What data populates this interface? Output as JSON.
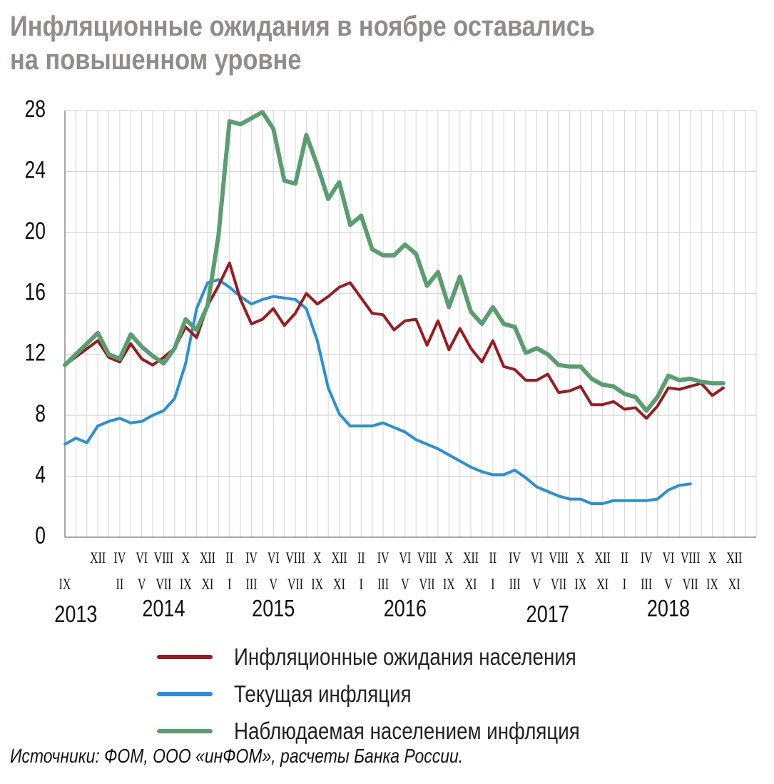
{
  "title": {
    "line1": "Инфляционные ожидания в ноябре оставались",
    "line2": "на повышенном уровне"
  },
  "source": "Источники: ФОМ, ООО «инФОМ», расчеты Банка России.",
  "legend": [
    {
      "label": "Инфляционные ожидания населения",
      "color": "#9b1b1e"
    },
    {
      "label": "Текущая инфляция",
      "color": "#2b8fd6"
    },
    {
      "label": "Наблюдаемая населением инфляция",
      "color": "#5a9e6f"
    }
  ],
  "chart_data": {
    "type": "line",
    "ylim": [
      0,
      28
    ],
    "yticks": [
      0,
      4,
      8,
      12,
      16,
      20,
      24,
      28
    ],
    "grid": true,
    "x_start": "2013-09",
    "x_end": "2018-12",
    "month_labels_top": [
      "XII",
      "IV",
      "VI",
      "VIII",
      "X",
      "XII",
      "II",
      "IV",
      "VI",
      "VIII",
      "X",
      "XII",
      "II",
      "IV",
      "VI",
      "VIII",
      "X",
      "XII",
      "II",
      "IV",
      "VI",
      "VIII",
      "X",
      "XII",
      "II",
      "IV",
      "VI",
      "VIII",
      "X",
      "XII"
    ],
    "month_labels_bottom": [
      "IX",
      "II",
      "V",
      "VII",
      "IX",
      "XI",
      "I",
      "III",
      "V",
      "VII",
      "IX",
      "XI",
      "I",
      "III",
      "V",
      "VII",
      "IX",
      "XI",
      "I",
      "III",
      "V",
      "VII",
      "IX",
      "XI",
      "I",
      "III",
      "V",
      "VII",
      "IX",
      "XI"
    ],
    "years": [
      "2013",
      "2014",
      "2015",
      "2016",
      "2017",
      "2018"
    ],
    "series": [
      {
        "name": "Инфляционные ожидания населения",
        "color": "#9b1b1e",
        "points": [
          [
            "2013-09",
            11.3
          ],
          [
            "2013-12",
            12.9
          ],
          [
            "2014-01",
            11.8
          ],
          [
            "2014-02",
            11.5
          ],
          [
            "2014-03",
            12.7
          ],
          [
            "2014-04",
            11.7
          ],
          [
            "2014-05",
            11.3
          ],
          [
            "2014-06",
            11.8
          ],
          [
            "2014-07",
            12.4
          ],
          [
            "2014-08",
            13.8
          ],
          [
            "2014-09",
            13.1
          ],
          [
            "2014-10",
            15.2
          ],
          [
            "2014-11",
            16.5
          ],
          [
            "2014-12",
            18.0
          ],
          [
            "2015-01",
            15.6
          ],
          [
            "2015-02",
            14.0
          ],
          [
            "2015-03",
            14.3
          ],
          [
            "2015-04",
            15.0
          ],
          [
            "2015-05",
            13.9
          ],
          [
            "2015-06",
            14.7
          ],
          [
            "2015-07",
            16.0
          ],
          [
            "2015-08",
            15.3
          ],
          [
            "2015-09",
            15.8
          ],
          [
            "2015-10",
            16.4
          ],
          [
            "2015-11",
            16.7
          ],
          [
            "2015-12",
            15.7
          ],
          [
            "2016-01",
            14.7
          ],
          [
            "2016-02",
            14.6
          ],
          [
            "2016-03",
            13.6
          ],
          [
            "2016-04",
            14.2
          ],
          [
            "2016-05",
            14.3
          ],
          [
            "2016-06",
            12.6
          ],
          [
            "2016-07",
            14.2
          ],
          [
            "2016-08",
            12.3
          ],
          [
            "2016-09",
            13.7
          ],
          [
            "2016-10",
            12.4
          ],
          [
            "2016-11",
            11.5
          ],
          [
            "2016-12",
            12.9
          ],
          [
            "2017-01",
            11.2
          ],
          [
            "2017-02",
            11.0
          ],
          [
            "2017-03",
            10.3
          ],
          [
            "2017-04",
            10.3
          ],
          [
            "2017-05",
            10.7
          ],
          [
            "2017-06",
            9.5
          ],
          [
            "2017-07",
            9.6
          ],
          [
            "2017-08",
            9.9
          ],
          [
            "2017-09",
            8.7
          ],
          [
            "2017-10",
            8.7
          ],
          [
            "2017-11",
            8.9
          ],
          [
            "2017-12",
            8.4
          ],
          [
            "2018-01",
            8.5
          ],
          [
            "2018-02",
            7.8
          ],
          [
            "2018-03",
            8.6
          ],
          [
            "2018-04",
            9.8
          ],
          [
            "2018-05",
            9.7
          ],
          [
            "2018-06",
            9.9
          ],
          [
            "2018-07",
            10.1
          ],
          [
            "2018-08",
            9.3
          ],
          [
            "2018-09",
            9.8
          ]
        ]
      },
      {
        "name": "Текущая инфляция",
        "color": "#2b8fd6",
        "points": [
          [
            "2013-09",
            6.1
          ],
          [
            "2013-10",
            6.5
          ],
          [
            "2013-11",
            6.2
          ],
          [
            "2013-12",
            7.3
          ],
          [
            "2014-01",
            7.6
          ],
          [
            "2014-02",
            7.8
          ],
          [
            "2014-03",
            7.5
          ],
          [
            "2014-04",
            7.6
          ],
          [
            "2014-05",
            8.0
          ],
          [
            "2014-06",
            8.3
          ],
          [
            "2014-07",
            9.1
          ],
          [
            "2014-08",
            11.4
          ],
          [
            "2014-09",
            15.0
          ],
          [
            "2014-10",
            16.7
          ],
          [
            "2014-11",
            16.9
          ],
          [
            "2014-12",
            16.4
          ],
          [
            "2015-01",
            15.8
          ],
          [
            "2015-02",
            15.3
          ],
          [
            "2015-03",
            15.6
          ],
          [
            "2015-04",
            15.8
          ],
          [
            "2015-05",
            15.7
          ],
          [
            "2015-06",
            15.6
          ],
          [
            "2015-07",
            15.0
          ],
          [
            "2015-08",
            12.9
          ],
          [
            "2015-09",
            9.8
          ],
          [
            "2015-10",
            8.1
          ],
          [
            "2015-11",
            7.3
          ],
          [
            "2015-12",
            7.3
          ],
          [
            "2016-01",
            7.3
          ],
          [
            "2016-02",
            7.5
          ],
          [
            "2016-03",
            7.2
          ],
          [
            "2016-04",
            6.9
          ],
          [
            "2016-05",
            6.4
          ],
          [
            "2016-06",
            6.1
          ],
          [
            "2016-07",
            5.8
          ],
          [
            "2016-08",
            5.4
          ],
          [
            "2016-09",
            5.0
          ],
          [
            "2016-10",
            4.6
          ],
          [
            "2016-11",
            4.3
          ],
          [
            "2016-12",
            4.1
          ],
          [
            "2017-01",
            4.1
          ],
          [
            "2017-02",
            4.4
          ],
          [
            "2017-03",
            3.9
          ],
          [
            "2017-04",
            3.3
          ],
          [
            "2017-05",
            3.0
          ],
          [
            "2017-06",
            2.7
          ],
          [
            "2017-07",
            2.5
          ],
          [
            "2017-08",
            2.5
          ],
          [
            "2017-09",
            2.2
          ],
          [
            "2017-10",
            2.2
          ],
          [
            "2017-11",
            2.4
          ],
          [
            "2017-12",
            2.4
          ],
          [
            "2018-01",
            2.4
          ],
          [
            "2018-02",
            2.4
          ],
          [
            "2018-03",
            2.5
          ],
          [
            "2018-04",
            3.1
          ],
          [
            "2018-05",
            3.4
          ],
          [
            "2018-06",
            3.5
          ]
        ]
      },
      {
        "name": "Наблюдаемая населением инфляция",
        "color": "#5a9e6f",
        "points": [
          [
            "2013-09",
            11.3
          ],
          [
            "2013-12",
            13.4
          ],
          [
            "2014-01",
            12.0
          ],
          [
            "2014-02",
            11.7
          ],
          [
            "2014-03",
            13.3
          ],
          [
            "2014-04",
            12.5
          ],
          [
            "2014-05",
            11.9
          ],
          [
            "2014-06",
            11.4
          ],
          [
            "2014-07",
            12.4
          ],
          [
            "2014-08",
            14.3
          ],
          [
            "2014-09",
            13.6
          ],
          [
            "2014-10",
            15.2
          ],
          [
            "2014-11",
            19.8
          ],
          [
            "2014-12",
            27.3
          ],
          [
            "2015-01",
            27.1
          ],
          [
            "2015-02",
            27.5
          ],
          [
            "2015-03",
            27.9
          ],
          [
            "2015-04",
            26.8
          ],
          [
            "2015-05",
            23.4
          ],
          [
            "2015-06",
            23.2
          ],
          [
            "2015-07",
            26.4
          ],
          [
            "2015-08",
            24.4
          ],
          [
            "2015-09",
            22.2
          ],
          [
            "2015-10",
            23.3
          ],
          [
            "2015-11",
            20.5
          ],
          [
            "2015-12",
            21.1
          ],
          [
            "2016-01",
            18.9
          ],
          [
            "2016-02",
            18.5
          ],
          [
            "2016-03",
            18.5
          ],
          [
            "2016-04",
            19.2
          ],
          [
            "2016-05",
            18.6
          ],
          [
            "2016-06",
            16.5
          ],
          [
            "2016-07",
            17.4
          ],
          [
            "2016-08",
            15.1
          ],
          [
            "2016-09",
            17.1
          ],
          [
            "2016-10",
            14.8
          ],
          [
            "2016-11",
            14.0
          ],
          [
            "2016-12",
            15.1
          ],
          [
            "2017-01",
            14.0
          ],
          [
            "2017-02",
            13.8
          ],
          [
            "2017-03",
            12.1
          ],
          [
            "2017-04",
            12.4
          ],
          [
            "2017-05",
            12.0
          ],
          [
            "2017-06",
            11.3
          ],
          [
            "2017-07",
            11.2
          ],
          [
            "2017-08",
            11.2
          ],
          [
            "2017-09",
            10.4
          ],
          [
            "2017-10",
            10.0
          ],
          [
            "2017-11",
            9.9
          ],
          [
            "2017-12",
            9.4
          ],
          [
            "2018-01",
            9.2
          ],
          [
            "2018-02",
            8.3
          ],
          [
            "2018-03",
            9.2
          ],
          [
            "2018-04",
            10.6
          ],
          [
            "2018-05",
            10.3
          ],
          [
            "2018-06",
            10.4
          ],
          [
            "2018-07",
            10.2
          ],
          [
            "2018-08",
            10.1
          ],
          [
            "2018-09",
            10.1
          ]
        ]
      }
    ]
  }
}
